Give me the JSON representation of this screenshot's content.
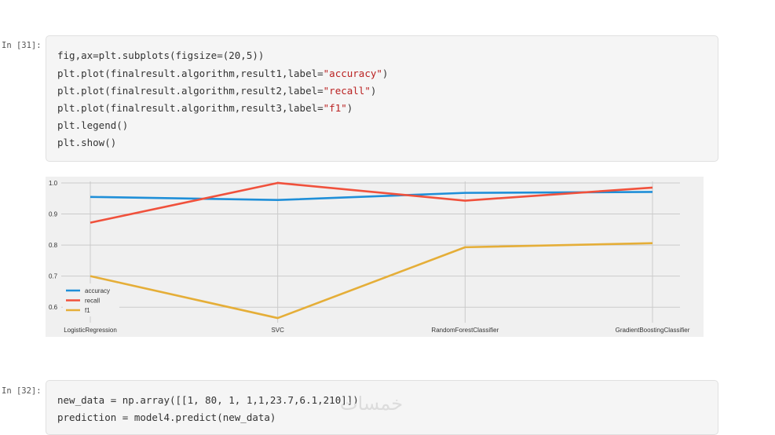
{
  "cells": [
    {
      "prompt": "In [31]:",
      "lines": [
        [
          "fig,ax=plt.subplots(figsize=(20,5))"
        ],
        [
          "plt.plot(finalresult.algorithm,result1,label=",
          "\"accuracy\"",
          ")"
        ],
        [
          "plt.plot(finalresult.algorithm,result2,label=",
          "\"recall\"",
          ")"
        ],
        [
          "plt.plot(finalresult.algorithm,result3,label=",
          "\"f1\"",
          ")"
        ],
        [
          "plt.legend()"
        ],
        [
          "plt.show()"
        ]
      ]
    },
    {
      "prompt": "In [32]:",
      "lines": [
        [
          "new_data = np.array([[1, 80, 1, 1,1,23.7,6.1,210]])"
        ],
        [
          "prediction = model4.predict(new_data)"
        ]
      ]
    }
  ],
  "watermark": "خمسات",
  "chart_data": {
    "type": "line",
    "categories": [
      "LogisticRegression",
      "SVC",
      "RandomForestClassifier",
      "GradientBoostingClassifier"
    ],
    "series": [
      {
        "name": "accuracy",
        "color": "#1f8fd8",
        "values": [
          0.955,
          0.945,
          0.968,
          0.971
        ]
      },
      {
        "name": "recall",
        "color": "#f0513c",
        "values": [
          0.872,
          1.0,
          0.943,
          0.985
        ]
      },
      {
        "name": "f1",
        "color": "#e5ae38",
        "values": [
          0.7,
          0.565,
          0.793,
          0.806
        ]
      }
    ],
    "yticks": [
      "0.6",
      "0.7",
      "0.8",
      "0.9",
      "1.0"
    ],
    "ylim": [
      0.55,
      1.005
    ],
    "grid": true,
    "legend_position": "lower-left",
    "background": "#f0f0f0"
  }
}
